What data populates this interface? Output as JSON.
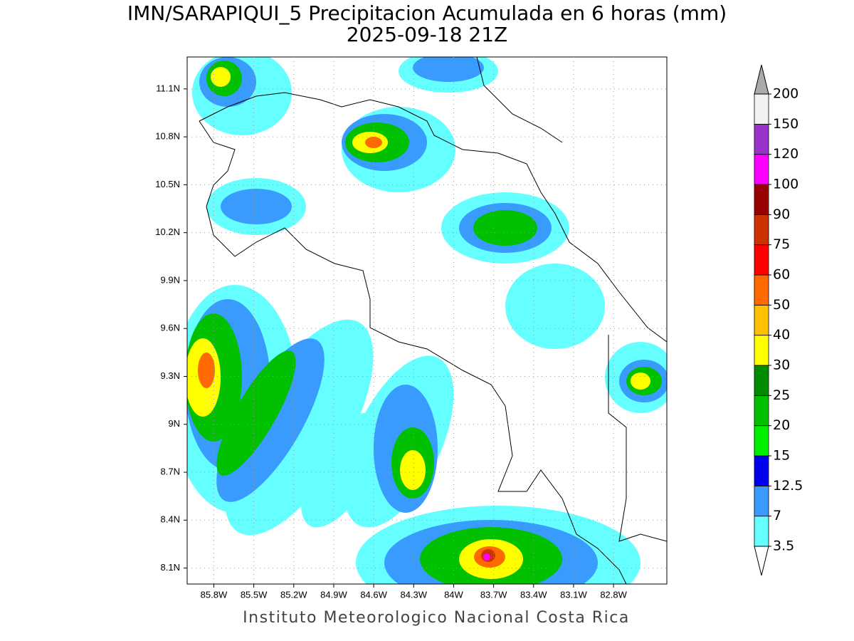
{
  "map": {
    "title": "IMN/SARAPIQUI_5 Precipitacion Acumulada en 6 horas (mm)",
    "subtitle": "2025-09-18 21Z",
    "footer": "Instituto Meteorologico Nacional Costa Rica",
    "xlim": [
      -86.0,
      -82.4
    ],
    "ylim": [
      8.0,
      11.3
    ],
    "xticks": [
      {
        "value": -85.8,
        "label": "85.8W"
      },
      {
        "value": -85.5,
        "label": "85.5W"
      },
      {
        "value": -85.2,
        "label": "85.2W"
      },
      {
        "value": -84.9,
        "label": "84.9W"
      },
      {
        "value": -84.6,
        "label": "84.6W"
      },
      {
        "value": -84.3,
        "label": "84.3W"
      },
      {
        "value": -84.0,
        "label": "84W"
      },
      {
        "value": -83.7,
        "label": "83.7W"
      },
      {
        "value": -83.4,
        "label": "83.4W"
      },
      {
        "value": -83.1,
        "label": "83.1W"
      },
      {
        "value": -82.8,
        "label": "82.8W"
      }
    ],
    "yticks": [
      {
        "value": 8.1,
        "label": "8.1N"
      },
      {
        "value": 8.4,
        "label": "8.4N"
      },
      {
        "value": 8.7,
        "label": "8.7N"
      },
      {
        "value": 9.0,
        "label": "9N"
      },
      {
        "value": 9.3,
        "label": "9.3N"
      },
      {
        "value": 9.6,
        "label": "9.6N"
      },
      {
        "value": 9.9,
        "label": "9.9N"
      },
      {
        "value": 10.2,
        "label": "10.2N"
      },
      {
        "value": 10.5,
        "label": "10.5N"
      },
      {
        "value": 10.8,
        "label": "10.8N"
      },
      {
        "value": 11.1,
        "label": "11.1N"
      }
    ],
    "grid": true,
    "colorbar": {
      "levels": [
        3.5,
        7,
        12.5,
        15,
        20,
        25,
        30,
        40,
        50,
        60,
        75,
        90,
        100,
        120,
        150,
        200
      ],
      "colors": [
        "#66ffff",
        "#3a9bff",
        "#0000ee",
        "#00ee00",
        "#00c000",
        "#008c00",
        "#ffff00",
        "#ffc000",
        "#ff6a00",
        "#ff0000",
        "#cc3300",
        "#990000",
        "#ff00ff",
        "#9933cc",
        "#f2f2f2"
      ],
      "under_color": "#ffffff",
      "over_color": "#aaaaaa"
    }
  }
}
